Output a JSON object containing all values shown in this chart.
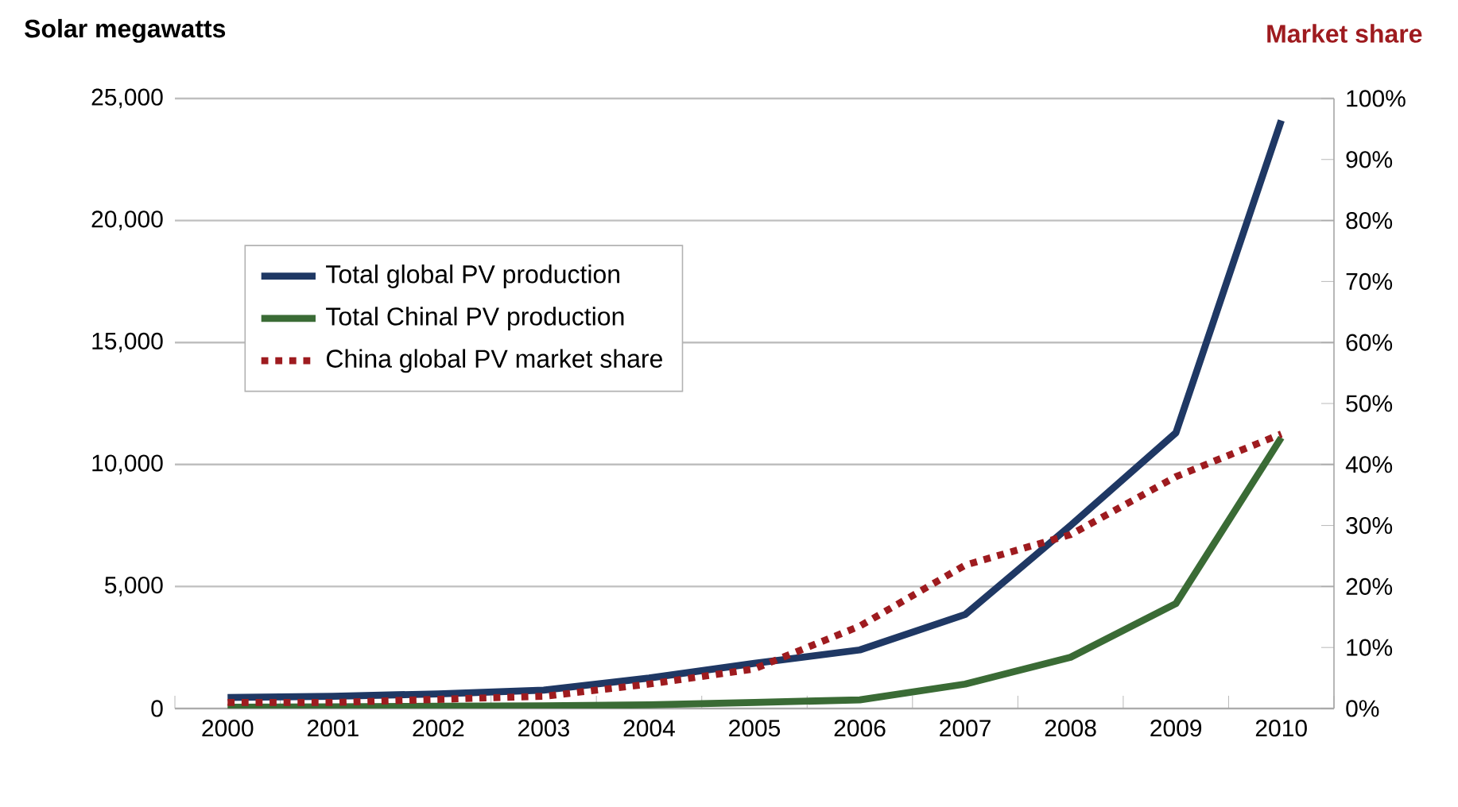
{
  "chart_data": {
    "type": "line",
    "ylabel": "Solar megawatts",
    "y2label": "Market share",
    "categories": [
      "2000",
      "2001",
      "2002",
      "2003",
      "2004",
      "2005",
      "2006",
      "2007",
      "2008",
      "2009",
      "2010"
    ],
    "series": [
      {
        "name": "Total global PV production",
        "color": "#1f3864",
        "line_style": "solid",
        "values": [
          450,
          500,
          600,
          750,
          1250,
          1850,
          2400,
          3850,
          7500,
          11300,
          24100
        ]
      },
      {
        "name": "Total Chinal PV production",
        "color": "#3a6b35",
        "line_style": "solid",
        "values": [
          50,
          70,
          90,
          110,
          150,
          250,
          350,
          1000,
          2100,
          4300,
          11100
        ]
      },
      {
        "name": "China global PV market share",
        "color": "#9e1b1f",
        "line_style": "dotted",
        "axis": "y2",
        "values": [
          1,
          1,
          1.5,
          2,
          4,
          6.5,
          13.5,
          23.5,
          28.5,
          38,
          45
        ]
      }
    ],
    "ylim": [
      0,
      25000
    ],
    "yticks": [
      0,
      {
        "value": 5000,
        "label": "5,000"
      },
      {
        "value": 10000,
        "label": "10,000"
      },
      {
        "value": 15000,
        "label": "15,000"
      },
      {
        "value": 20000,
        "label": "20,000"
      },
      {
        "value": 25000,
        "label": "25,000"
      }
    ],
    "y2lim": [
      0,
      100
    ],
    "y2ticks": [
      {
        "value": 0,
        "label": "0%"
      },
      {
        "value": 10,
        "label": "10%"
      },
      {
        "value": 20,
        "label": "20%"
      },
      {
        "value": 30,
        "label": "30%"
      },
      {
        "value": 40,
        "label": "40%"
      },
      {
        "value": 50,
        "label": "50%"
      },
      {
        "value": 60,
        "label": "60%"
      },
      {
        "value": 70,
        "label": "70%"
      },
      {
        "value": 80,
        "label": "80%"
      },
      {
        "value": 90,
        "label": "90%"
      },
      {
        "value": 100,
        "label": "100%"
      }
    ],
    "grid": "y",
    "legend": "top left"
  }
}
